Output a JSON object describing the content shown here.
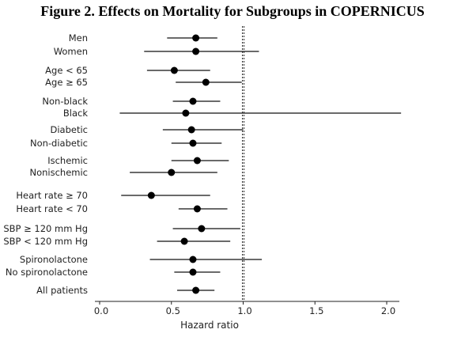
{
  "chart_data": {
    "type": "forest",
    "title": "Figure 2. Effects on Mortality for Subgroups in COPERNICUS",
    "xlabel": "Hazard ratio",
    "xlim": [
      0.0,
      2.1
    ],
    "xticks": [
      "0.0",
      "0.5",
      "1.0",
      "1.5",
      "2.0"
    ],
    "reference_line": 1.0,
    "subgroups": [
      {
        "label": "Men",
        "hr": 0.67,
        "lo": 0.47,
        "hi": 0.82
      },
      {
        "label": "Women",
        "hr": 0.67,
        "lo": 0.31,
        "hi": 1.11
      },
      {
        "label": "Age < 65",
        "hr": 0.52,
        "lo": 0.33,
        "hi": 0.77
      },
      {
        "label": "Age ≥ 65",
        "hr": 0.74,
        "lo": 0.53,
        "hi": 0.99
      },
      {
        "label": "Non-black",
        "hr": 0.65,
        "lo": 0.51,
        "hi": 0.84
      },
      {
        "label": "Black",
        "hr": 0.6,
        "lo": 0.14,
        "hi": 2.1
      },
      {
        "label": "Diabetic",
        "hr": 0.64,
        "lo": 0.44,
        "hi": 1.0
      },
      {
        "label": "Non-diabetic",
        "hr": 0.65,
        "lo": 0.5,
        "hi": 0.85
      },
      {
        "label": "Ischemic",
        "hr": 0.68,
        "lo": 0.5,
        "hi": 0.9
      },
      {
        "label": "Nonischemic",
        "hr": 0.5,
        "lo": 0.21,
        "hi": 0.82
      },
      {
        "label": "Heart rate ≥ 70",
        "hr": 0.36,
        "lo": 0.15,
        "hi": 0.77
      },
      {
        "label": "Heart rate < 70",
        "hr": 0.68,
        "lo": 0.55,
        "hi": 0.89
      },
      {
        "label": "SBP ≥ 120 mm Hg",
        "hr": 0.71,
        "lo": 0.51,
        "hi": 0.98
      },
      {
        "label": "SBP < 120 mm Hg",
        "hr": 0.59,
        "lo": 0.4,
        "hi": 0.91
      },
      {
        "label": "Spironolactone",
        "hr": 0.65,
        "lo": 0.35,
        "hi": 1.13
      },
      {
        "label": "No spironolactone",
        "hr": 0.65,
        "lo": 0.52,
        "hi": 0.84
      },
      {
        "label": "All patients",
        "hr": 0.67,
        "lo": 0.54,
        "hi": 0.8
      }
    ]
  }
}
